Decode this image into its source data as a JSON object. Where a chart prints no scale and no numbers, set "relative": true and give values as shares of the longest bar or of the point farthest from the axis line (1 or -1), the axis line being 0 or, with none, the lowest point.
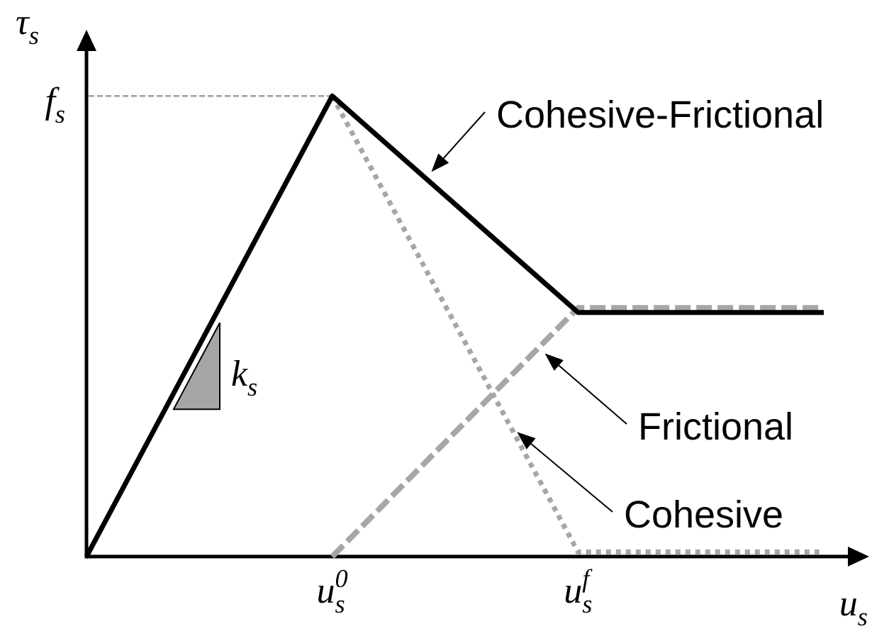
{
  "chart_data": {
    "type": "line",
    "relative": true,
    "xlabel": "u$_{s}$",
    "ylabel": "τ$_{s}$",
    "categories": [
      null,
      "u$_{s}$$^{0}$",
      "u$_{s}$$^{f}$",
      null
    ],
    "series": [
      {
        "name": "Cohesive-Frictional",
        "color": "#000000",
        "line_style": "solid",
        "values": [
          0,
          1,
          0.53,
          0.53
        ]
      },
      {
        "name": "Frictional",
        "color": "#a6a6a6",
        "line_style": "dashed",
        "values": [
          null,
          0,
          0.54,
          0.54
        ]
      },
      {
        "name": "Cohesive",
        "color": "#a6a6a6",
        "line_style": "dotted",
        "values": [
          null,
          1,
          0.01,
          0.01
        ]
      }
    ],
    "ref_lines": [
      {
        "axis": "y",
        "value": 1,
        "label": "f$_{s}$",
        "color": "#a6a6a6",
        "line_style": "dashed"
      }
    ],
    "annotations": [
      "k$_{s}$"
    ]
  }
}
